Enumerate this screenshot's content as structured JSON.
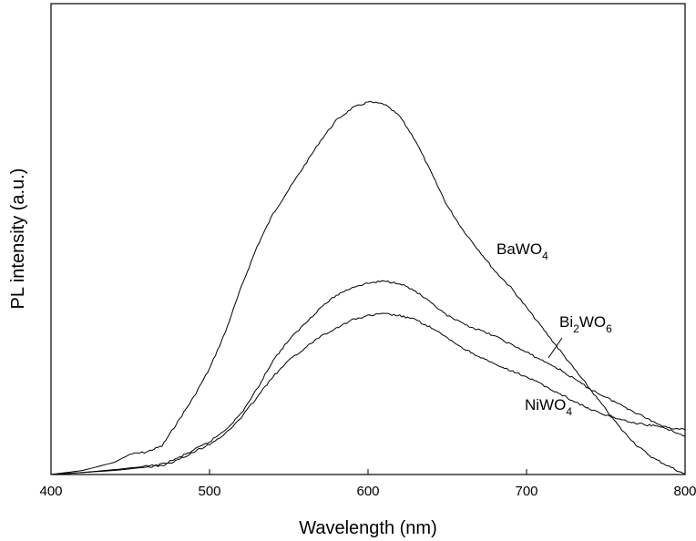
{
  "chart_data": {
    "type": "line",
    "title": "",
    "xlabel": "Wavelength (nm)",
    "ylabel": "PL intensity (a.u.)",
    "xlim": [
      400,
      800
    ],
    "ylim": [
      0,
      1.0
    ],
    "x_ticks": [
      400,
      500,
      600,
      700,
      800
    ],
    "x_tick_labels": [
      "400",
      "500",
      "600",
      "700",
      "800"
    ],
    "y_ticks_shown": false,
    "grid": false,
    "legend": "inline labels",
    "series": [
      {
        "name": "BaWO4",
        "label_main": "BaWO",
        "label_sub": "4",
        "x": [
          400,
          420,
          440,
          450,
          460,
          470,
          480,
          490,
          500,
          510,
          520,
          530,
          540,
          550,
          560,
          570,
          580,
          590,
          600,
          610,
          620,
          630,
          640,
          650,
          660,
          670,
          680,
          690,
          700,
          710,
          720,
          730,
          740,
          750,
          760,
          770,
          780,
          790,
          800
        ],
        "y": [
          0.0,
          0.01,
          0.03,
          0.05,
          0.055,
          0.07,
          0.13,
          0.19,
          0.26,
          0.35,
          0.46,
          0.56,
          0.64,
          0.7,
          0.76,
          0.82,
          0.87,
          0.9,
          0.915,
          0.91,
          0.88,
          0.82,
          0.74,
          0.66,
          0.6,
          0.55,
          0.5,
          0.46,
          0.41,
          0.36,
          0.31,
          0.26,
          0.21,
          0.16,
          0.11,
          0.07,
          0.04,
          0.02,
          0.0
        ]
      },
      {
        "name": "Bi2WO6",
        "label_main": "Bi",
        "label_sub1": "2",
        "label_mid": "WO",
        "label_sub2": "6",
        "x": [
          400,
          420,
          440,
          460,
          470,
          480,
          490,
          500,
          510,
          520,
          530,
          540,
          550,
          560,
          570,
          580,
          590,
          600,
          610,
          620,
          630,
          640,
          650,
          660,
          670,
          680,
          690,
          700,
          710,
          720,
          730,
          740,
          750,
          760,
          770,
          780,
          790,
          800
        ],
        "y": [
          0.0,
          0.005,
          0.012,
          0.02,
          0.025,
          0.04,
          0.06,
          0.08,
          0.11,
          0.15,
          0.21,
          0.28,
          0.33,
          0.37,
          0.41,
          0.44,
          0.46,
          0.47,
          0.475,
          0.47,
          0.45,
          0.42,
          0.39,
          0.37,
          0.355,
          0.34,
          0.32,
          0.3,
          0.28,
          0.26,
          0.235,
          0.21,
          0.19,
          0.17,
          0.15,
          0.13,
          0.11,
          0.095
        ]
      },
      {
        "name": "NiWO4",
        "label_main": "NiWO",
        "label_sub": "4",
        "x": [
          400,
          420,
          440,
          460,
          470,
          480,
          490,
          500,
          510,
          520,
          530,
          540,
          550,
          560,
          570,
          580,
          590,
          600,
          610,
          620,
          630,
          640,
          650,
          660,
          670,
          680,
          690,
          700,
          710,
          720,
          730,
          740,
          750,
          760,
          770,
          780,
          790,
          800
        ],
        "y": [
          0.0,
          0.005,
          0.01,
          0.018,
          0.022,
          0.035,
          0.055,
          0.075,
          0.1,
          0.14,
          0.19,
          0.24,
          0.28,
          0.31,
          0.34,
          0.36,
          0.38,
          0.39,
          0.395,
          0.39,
          0.38,
          0.36,
          0.335,
          0.31,
          0.29,
          0.27,
          0.255,
          0.24,
          0.22,
          0.2,
          0.18,
          0.16,
          0.145,
          0.135,
          0.125,
          0.12,
          0.115,
          0.11
        ]
      }
    ],
    "colors": {
      "line": "#000000",
      "background": "#ffffff"
    }
  }
}
